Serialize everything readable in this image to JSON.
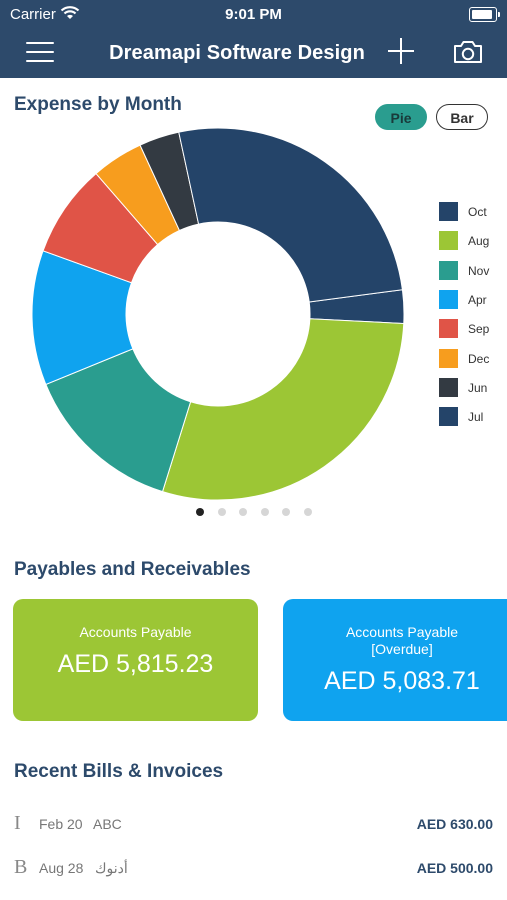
{
  "status_bar": {
    "carrier": "Carrier",
    "time": "9:01 PM"
  },
  "header": {
    "title": "Dreamapi Software Design"
  },
  "expense": {
    "title": "Expense by Month",
    "toggle_pie": "Pie",
    "toggle_bar": "Bar",
    "selected_view": "Pie",
    "legend": [
      {
        "label": "Oct",
        "color": "#244469"
      },
      {
        "label": "Aug",
        "color": "#9cc635"
      },
      {
        "label": "Nov",
        "color": "#2a9d8f"
      },
      {
        "label": "Apr",
        "color": "#0fa3ef"
      },
      {
        "label": "Sep",
        "color": "#e05447"
      },
      {
        "label": "Dec",
        "color": "#f79d1e"
      },
      {
        "label": "Jun",
        "color": "#333a42"
      },
      {
        "label": "Jul",
        "color": "#244469"
      }
    ],
    "page_count": 6,
    "active_page": 0
  },
  "chart_data": {
    "type": "pie",
    "variant": "donut",
    "slices": [
      {
        "label": "Oct",
        "value": 2.9,
        "color": "#244469"
      },
      {
        "label": "Aug",
        "value": 29.0,
        "color": "#9cc635"
      },
      {
        "label": "Nov",
        "value": 14.0,
        "color": "#2a9d8f"
      },
      {
        "label": "Apr",
        "value": 11.7,
        "color": "#0fa3ef"
      },
      {
        "label": "Sep",
        "value": 8.1,
        "color": "#e05447"
      },
      {
        "label": "Dec",
        "value": 4.5,
        "color": "#f79d1e"
      },
      {
        "label": "Jun",
        "value": 3.5,
        "color": "#333a42"
      },
      {
        "label": "Jul",
        "value": 26.3,
        "color": "#244469"
      }
    ],
    "legend_position": "right"
  },
  "payables": {
    "title": "Payables and Receivables",
    "cards": [
      {
        "label": "Accounts Payable",
        "value": "AED 5,815.23",
        "color": "#9cc635"
      },
      {
        "label": "Accounts Payable [Overdue]",
        "label_line1": "Accounts Payable",
        "label_line2": "[Overdue]",
        "value": "AED 5,083.71",
        "color": "#0fa3ef"
      }
    ]
  },
  "recent": {
    "title": "Recent Bills & Invoices",
    "rows": [
      {
        "icon": "I",
        "date": "Feb 20",
        "name": "ABC",
        "amount": "AED  630.00"
      },
      {
        "icon": "B",
        "date": "Aug 28",
        "name": "أدنوك",
        "amount": "AED  500.00"
      }
    ]
  },
  "icons": [
    "menu-icon",
    "wifi-icon",
    "battery-icon",
    "add-icon",
    "camera-icon"
  ]
}
